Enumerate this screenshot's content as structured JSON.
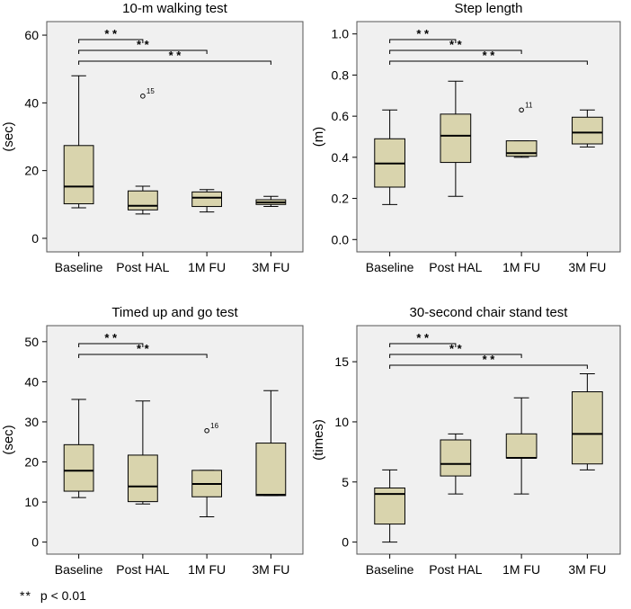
{
  "chart_data": [
    {
      "type": "boxplot",
      "title": "10-m walking test",
      "ylabel": "(sec)",
      "ylim": [
        -4,
        64
      ],
      "yticks": [
        0,
        20,
        40,
        60
      ],
      "categories": [
        "Baseline",
        "Post HAL",
        "1M FU",
        "3M FU"
      ],
      "boxes": [
        {
          "min": 9,
          "q1": 10.2,
          "median": 15.3,
          "q3": 27.4,
          "max": 48,
          "outliers": []
        },
        {
          "min": 7.2,
          "q1": 8.4,
          "median": 9.6,
          "q3": 14,
          "max": 15.4,
          "outliers": [
            {
              "value": 42,
              "label": "15"
            }
          ]
        },
        {
          "min": 7.8,
          "q1": 9.4,
          "median": 12,
          "q3": 13.7,
          "max": 14.4,
          "outliers": []
        },
        {
          "min": 9.4,
          "q1": 10,
          "median": 10.6,
          "q3": 11.4,
          "max": 12.4,
          "outliers": []
        }
      ],
      "significance": [
        {
          "from": 0,
          "to": 1,
          "label": "* *"
        },
        {
          "from": 0,
          "to": 2,
          "label": "* *"
        },
        {
          "from": 0,
          "to": 3,
          "label": "* *"
        }
      ]
    },
    {
      "type": "boxplot",
      "title": "Step length",
      "ylabel": "(m)",
      "ylim": [
        -0.06,
        1.06
      ],
      "yticks": [
        0.0,
        0.2,
        0.4,
        0.6,
        0.8,
        1.0
      ],
      "yticklabels": [
        "0.0",
        "0.2",
        "0.4",
        "0.6",
        "0.8",
        "1.0"
      ],
      "categories": [
        "Baseline",
        "Post HAL",
        "1M FU",
        "3M FU"
      ],
      "boxes": [
        {
          "min": 0.17,
          "q1": 0.255,
          "median": 0.37,
          "q3": 0.49,
          "max": 0.63,
          "outliers": []
        },
        {
          "min": 0.21,
          "q1": 0.375,
          "median": 0.505,
          "q3": 0.61,
          "max": 0.77,
          "outliers": []
        },
        {
          "min": 0.4,
          "q1": 0.405,
          "median": 0.42,
          "q3": 0.48,
          "max": 0.48,
          "outliers": [
            {
              "value": 0.63,
              "label": "11"
            }
          ]
        },
        {
          "min": 0.45,
          "q1": 0.465,
          "median": 0.52,
          "q3": 0.595,
          "max": 0.63,
          "outliers": []
        }
      ],
      "significance": [
        {
          "from": 0,
          "to": 1,
          "label": "* *"
        },
        {
          "from": 0,
          "to": 2,
          "label": "* *"
        },
        {
          "from": 0,
          "to": 3,
          "label": "* *"
        }
      ]
    },
    {
      "type": "boxplot",
      "title": "Timed up and go test",
      "ylabel": "(sec)",
      "ylim": [
        -3,
        54
      ],
      "yticks": [
        0,
        10,
        20,
        30,
        40,
        50
      ],
      "categories": [
        "Baseline",
        "Post HAL",
        "1M FU",
        "3M FU"
      ],
      "boxes": [
        {
          "min": 11.1,
          "q1": 12.7,
          "median": 17.8,
          "q3": 24.3,
          "max": 35.6,
          "outliers": []
        },
        {
          "min": 9.5,
          "q1": 10.1,
          "median": 13.9,
          "q3": 21.7,
          "max": 35.2,
          "outliers": []
        },
        {
          "min": 6.3,
          "q1": 11.3,
          "median": 14.5,
          "q3": 17.9,
          "max": 17.9,
          "outliers": [
            {
              "value": 27.8,
              "label": "16"
            }
          ]
        },
        {
          "min": 11.6,
          "q1": 11.6,
          "median": 11.8,
          "q3": 24.7,
          "max": 37.8,
          "outliers": []
        }
      ],
      "significance": [
        {
          "from": 0,
          "to": 1,
          "label": "* *"
        },
        {
          "from": 0,
          "to": 2,
          "label": "* *"
        }
      ]
    },
    {
      "type": "boxplot",
      "title": "30-second chair stand test",
      "ylabel": "(times)",
      "ylim": [
        -1,
        18
      ],
      "yticks": [
        0,
        5,
        10,
        15
      ],
      "categories": [
        "Baseline",
        "Post HAL",
        "1M FU",
        "3M FU"
      ],
      "boxes": [
        {
          "min": 0,
          "q1": 1.5,
          "median": 4,
          "q3": 4.5,
          "max": 6,
          "outliers": []
        },
        {
          "min": 4,
          "q1": 5.5,
          "median": 6.5,
          "q3": 8.5,
          "max": 9,
          "outliers": []
        },
        {
          "min": 4,
          "q1": 7,
          "median": 7,
          "q3": 9,
          "max": 12,
          "outliers": []
        },
        {
          "min": 6,
          "q1": 6.5,
          "median": 9,
          "q3": 12.5,
          "max": 14,
          "outliers": []
        }
      ],
      "significance": [
        {
          "from": 0,
          "to": 1,
          "label": "* *"
        },
        {
          "from": 0,
          "to": 2,
          "label": "* *"
        },
        {
          "from": 0,
          "to": 3,
          "label": "* *"
        }
      ]
    }
  ],
  "colors": {
    "plot_background": "#f0f0f0",
    "box_fill": "#d9d4ad",
    "line": "#000000"
  },
  "footnote": {
    "stars": "**",
    "text": "p < 0.01"
  }
}
